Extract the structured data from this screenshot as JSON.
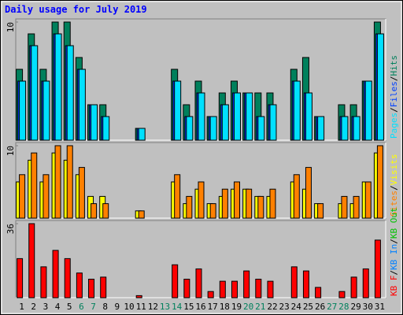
{
  "chart_data": [
    {
      "type": "bar",
      "title": "Daily usage for July 2019",
      "ylim": [
        0,
        10
      ],
      "yticks": [
        10
      ],
      "legend_separator": "/",
      "series": [
        {
          "name": "Hits",
          "color": "#00805c",
          "values": [
            6,
            9,
            6,
            10,
            10,
            7,
            3,
            3,
            0,
            0,
            1,
            0,
            0,
            6,
            3,
            5,
            2,
            4,
            5,
            4,
            4,
            4,
            0,
            6,
            7,
            2,
            0,
            3,
            3,
            5,
            10
          ]
        },
        {
          "name": "Files",
          "color": "#0040ff",
          "values": [
            5,
            8,
            5,
            9,
            8,
            6,
            3,
            2,
            0,
            0,
            1,
            0,
            0,
            5,
            2,
            4,
            2,
            3,
            4,
            4,
            2,
            3,
            0,
            5,
            4,
            2,
            0,
            2,
            2,
            5,
            9
          ]
        },
        {
          "name": "Pages",
          "color": "#00e0ff",
          "values": [
            5,
            8,
            5,
            9,
            8,
            6,
            3,
            2,
            0,
            0,
            1,
            0,
            0,
            5,
            2,
            4,
            2,
            3,
            4,
            4,
            2,
            3,
            0,
            5,
            4,
            2,
            0,
            2,
            2,
            5,
            9
          ]
        }
      ]
    },
    {
      "type": "bar",
      "ylim": [
        0,
        10
      ],
      "yticks": [
        10
      ],
      "legend_separator": "/",
      "series": [
        {
          "name": "Visits",
          "color": "#ffff00",
          "values": [
            5,
            8,
            5,
            9,
            8,
            6,
            3,
            3,
            0,
            0,
            1,
            0,
            0,
            5,
            2,
            4,
            2,
            3,
            4,
            4,
            3,
            3,
            0,
            5,
            4,
            2,
            0,
            2,
            2,
            5,
            9
          ]
        },
        {
          "name": "Sites",
          "color": "#ff8000",
          "values": [
            6,
            9,
            6,
            10,
            10,
            7,
            2,
            2,
            0,
            0,
            1,
            0,
            0,
            6,
            3,
            5,
            2,
            4,
            5,
            4,
            3,
            4,
            0,
            6,
            7,
            2,
            0,
            3,
            3,
            5,
            10
          ]
        }
      ]
    },
    {
      "type": "bar",
      "ylim": [
        0,
        36
      ],
      "yticks": [
        36
      ],
      "legend_separator": "/",
      "categories": [
        "1",
        "2",
        "3",
        "4",
        "5",
        "6",
        "7",
        "8",
        "9",
        "10",
        "11",
        "12",
        "13",
        "14",
        "15",
        "16",
        "17",
        "18",
        "19",
        "20",
        "21",
        "22",
        "23",
        "24",
        "25",
        "26",
        "27",
        "28",
        "29",
        "30",
        "31"
      ],
      "category_colors": [
        "#000000",
        "#000000",
        "#000000",
        "#000000",
        "#000000",
        "#00805c",
        "#00805c",
        "#000000",
        "#000000",
        "#000000",
        "#000000",
        "#000000",
        "#00805c",
        "#00805c",
        "#000000",
        "#000000",
        "#000000",
        "#000000",
        "#000000",
        "#00805c",
        "#00805c",
        "#000000",
        "#000000",
        "#000000",
        "#000000",
        "#000000",
        "#00805c",
        "#00805c",
        "#000000",
        "#000000",
        "#000000"
      ],
      "series": [
        {
          "name": "KB F",
          "color": "#ff0000",
          "values": [
            19,
            36,
            15,
            23,
            19,
            12,
            9,
            10,
            0,
            0,
            1,
            0,
            0,
            16,
            9,
            14,
            3,
            8,
            8,
            13,
            9,
            8,
            0,
            15,
            13,
            5,
            0,
            3,
            10,
            14,
            28
          ]
        },
        {
          "name": "KB In",
          "color": "#0080ff",
          "values": [
            0,
            0,
            0,
            0,
            0,
            0,
            0,
            0,
            0,
            0,
            0,
            0,
            0,
            0,
            0,
            0,
            0,
            0,
            0,
            0,
            0,
            0,
            0,
            0,
            0,
            0,
            0,
            0,
            0,
            0,
            0
          ]
        },
        {
          "name": "KB Out",
          "color": "#00c000",
          "values": [
            0,
            0,
            0,
            0,
            0,
            0,
            0,
            0,
            0,
            0,
            0,
            0,
            0,
            0,
            0,
            0,
            0,
            0,
            0,
            0,
            0,
            0,
            0,
            0,
            0,
            0,
            0,
            0,
            0,
            0,
            0
          ]
        }
      ]
    }
  ]
}
